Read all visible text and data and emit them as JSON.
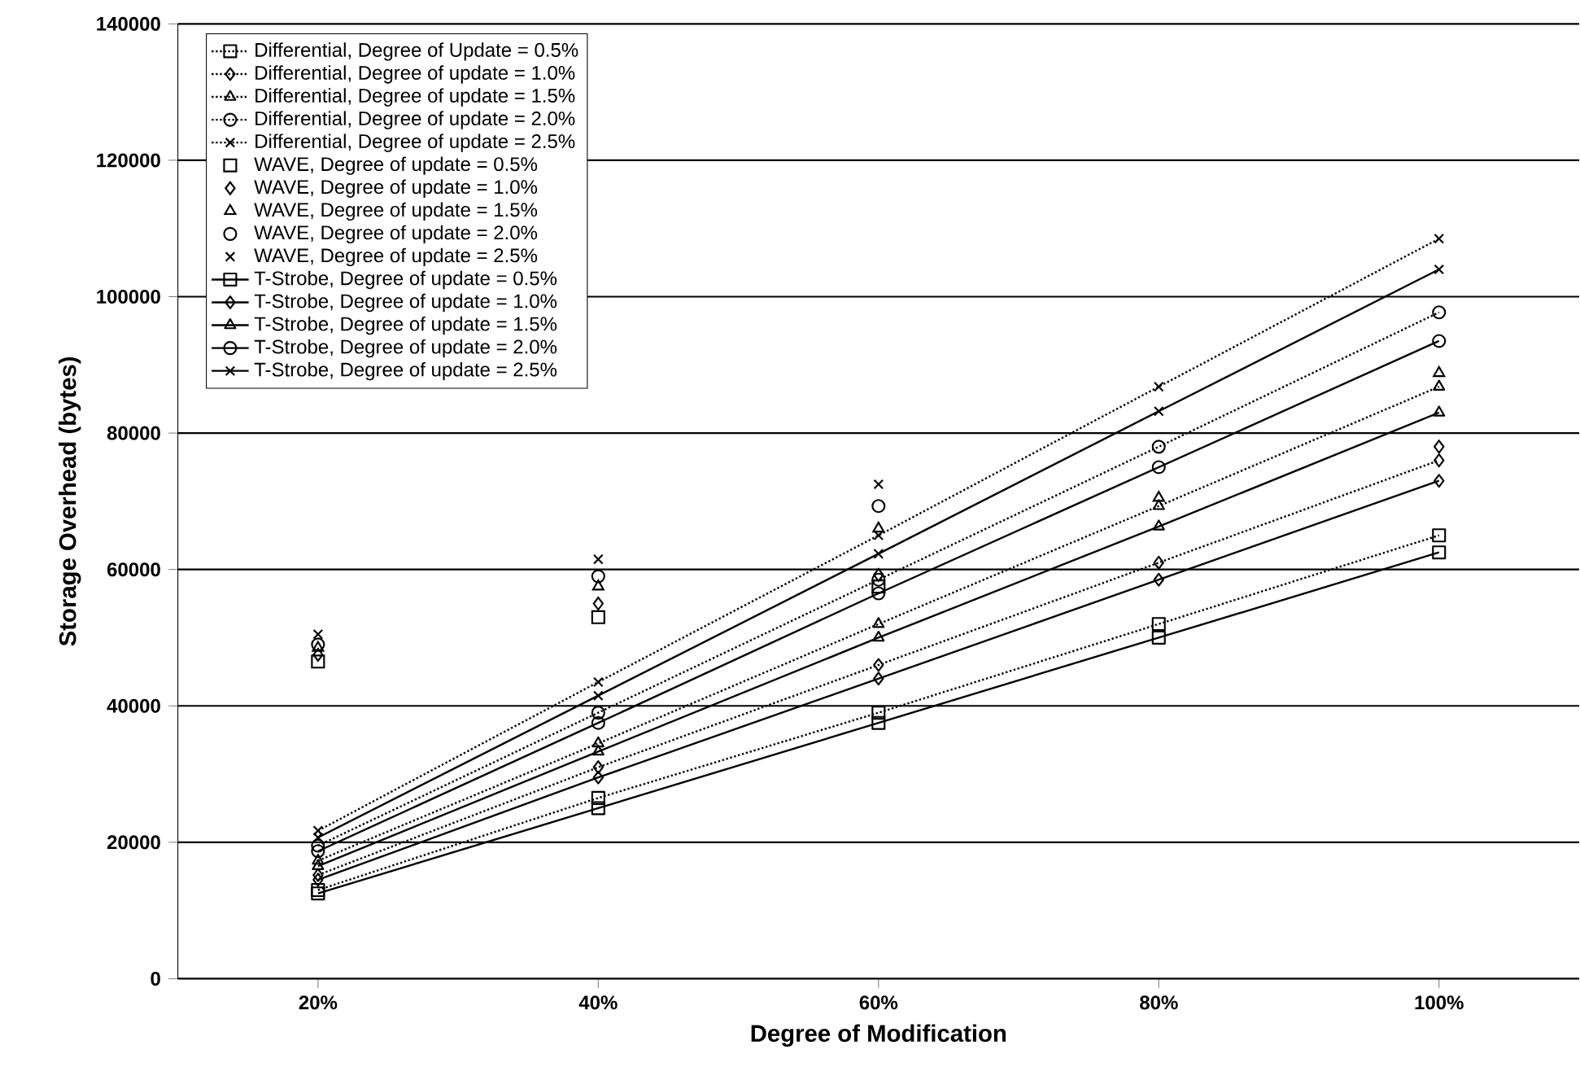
{
  "chart_data": {
    "type": "line",
    "xlabel": "Degree of Modification",
    "ylabel": "Storage Overhead (bytes)",
    "categories": [
      "20%",
      "40%",
      "60%",
      "80%",
      "100%"
    ],
    "ylim": [
      0,
      140000
    ],
    "yticks": [
      0,
      20000,
      40000,
      60000,
      80000,
      100000,
      120000,
      140000
    ],
    "grid": "y",
    "legend": "top left",
    "series": [
      {
        "name": "Differential, Degree of Update = 0.5%",
        "color": "#000000",
        "marker": "square",
        "line_style": "dotted",
        "values": [
          13000,
          26500,
          39000,
          52000,
          65000
        ]
      },
      {
        "name": "Differential, Degree of update = 1.0%",
        "color": "#000000",
        "marker": "diamond",
        "line_style": "dotted",
        "values": [
          15200,
          31000,
          46000,
          61000,
          76000
        ]
      },
      {
        "name": "Differential, Degree of update = 1.5%",
        "color": "#000000",
        "marker": "triangle",
        "line_style": "dotted",
        "values": [
          17300,
          34500,
          52000,
          69300,
          86800
        ]
      },
      {
        "name": "Differential, Degree of update = 2.0%",
        "color": "#000000",
        "marker": "circle",
        "line_style": "dotted",
        "values": [
          19500,
          39000,
          58500,
          78000,
          97700
        ]
      },
      {
        "name": "Differential, Degree of update = 2.5%",
        "color": "#000000",
        "marker": "cross",
        "line_style": "dotted",
        "values": [
          21700,
          43500,
          65000,
          86800,
          108500
        ]
      },
      {
        "name": "WAVE, Degree of update = 0.5%",
        "type": "scatter",
        "color": "#000000",
        "marker": "square",
        "values": [
          46500,
          53000,
          57500,
          null,
          null
        ]
      },
      {
        "name": "WAVE, Degree of update = 1.0%",
        "type": "scatter",
        "color": "#000000",
        "marker": "diamond",
        "values": [
          47500,
          55000,
          59200,
          null,
          78000
        ]
      },
      {
        "name": "WAVE, Degree of update = 1.5%",
        "type": "scatter",
        "color": "#000000",
        "marker": "triangle",
        "values": [
          48500,
          57500,
          66000,
          70500,
          88800
        ]
      },
      {
        "name": "WAVE, Degree of update = 2.0%",
        "type": "scatter",
        "color": "#000000",
        "marker": "circle",
        "values": [
          49000,
          59000,
          69300,
          null,
          null
        ]
      },
      {
        "name": "WAVE, Degree of update = 2.5%",
        "type": "scatter",
        "color": "#000000",
        "marker": "cross",
        "values": [
          50500,
          61500,
          72500,
          null,
          null
        ]
      },
      {
        "name": "T-Strobe, Degree of update = 0.5%",
        "color": "#000000",
        "marker": "square",
        "line_style": "solid",
        "values": [
          12500,
          25000,
          37500,
          50000,
          62500
        ]
      },
      {
        "name": "T-Strobe, Degree of update = 1.0%",
        "color": "#000000",
        "marker": "diamond",
        "line_style": "solid",
        "values": [
          14500,
          29500,
          44000,
          58500,
          73000
        ]
      },
      {
        "name": "T-Strobe, Degree of update = 1.5%",
        "color": "#000000",
        "marker": "triangle",
        "line_style": "solid",
        "values": [
          16500,
          33300,
          50000,
          66300,
          83000
        ]
      },
      {
        "name": "T-Strobe, Degree of update = 2.0%",
        "color": "#000000",
        "marker": "circle",
        "line_style": "solid",
        "values": [
          18700,
          37500,
          56500,
          75000,
          93500
        ]
      },
      {
        "name": "T-Strobe, Degree of update = 2.5%",
        "color": "#000000",
        "marker": "cross",
        "line_style": "solid",
        "values": [
          20700,
          41500,
          62300,
          83200,
          104000
        ]
      }
    ]
  }
}
